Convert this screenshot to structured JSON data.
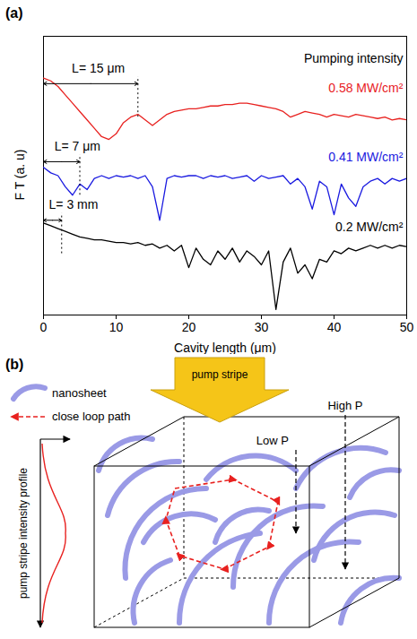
{
  "chart_panel": "(a)",
  "chart_data": {
    "type": "line",
    "xlabel": "Cavity length (μm)",
    "ylabel": "F T (a. u)",
    "xlim": [
      0,
      50
    ],
    "xticks": [
      0,
      10,
      20,
      30,
      40,
      50
    ],
    "ylim": [
      0,
      10
    ],
    "tick_labels": "x",
    "x": [
      0,
      1,
      2,
      3,
      4,
      5,
      6,
      7,
      8,
      9,
      10,
      11,
      12,
      13,
      14,
      15,
      16,
      17,
      18,
      19,
      20,
      21,
      22,
      23,
      24,
      25,
      26,
      27,
      28,
      29,
      30,
      31,
      32,
      33,
      34,
      35,
      36,
      37,
      38,
      39,
      40,
      41,
      42,
      43,
      44,
      45,
      46,
      47,
      48,
      49,
      50
    ],
    "series": [
      {
        "name": "0.58 MW/cm²",
        "color": "#e8211f",
        "values": [
          8.5,
          8.4,
          8.2,
          7.9,
          7.6,
          7.3,
          7.0,
          6.7,
          6.4,
          6.3,
          6.5,
          6.9,
          7.1,
          7.2,
          7.0,
          6.8,
          7.0,
          7.2,
          7.3,
          7.35,
          7.4,
          7.4,
          7.45,
          7.5,
          7.5,
          7.55,
          7.55,
          7.6,
          7.6,
          7.55,
          7.5,
          7.45,
          7.4,
          7.3,
          7.1,
          7.2,
          7.3,
          7.25,
          7.2,
          7.1,
          7.2,
          7.15,
          7.1,
          7.2,
          7.15,
          7.1,
          7.05,
          7.1,
          7.0,
          7.05,
          7.0
        ]
      },
      {
        "name": "0.41 MW/cm²",
        "color": "#1a1ae0",
        "values": [
          5.3,
          5.1,
          5.0,
          4.6,
          4.3,
          4.7,
          4.5,
          4.9,
          5.0,
          4.9,
          5.0,
          4.95,
          5.0,
          4.9,
          5.0,
          4.6,
          3.4,
          4.9,
          5.0,
          4.95,
          5.0,
          5.0,
          4.9,
          5.0,
          4.95,
          5.0,
          4.9,
          4.95,
          5.0,
          4.8,
          5.0,
          4.9,
          4.95,
          5.0,
          4.7,
          4.9,
          4.6,
          3.8,
          4.8,
          4.6,
          3.6,
          4.7,
          4.2,
          3.9,
          4.6,
          4.8,
          4.9,
          4.7,
          4.9,
          4.8,
          4.9
        ]
      },
      {
        "name": "0.2 MW/cm²",
        "color": "#000000",
        "values": [
          3.3,
          3.2,
          3.1,
          3.0,
          2.9,
          2.8,
          2.75,
          2.7,
          2.7,
          2.65,
          2.6,
          2.6,
          2.55,
          2.6,
          2.5,
          2.55,
          2.4,
          2.5,
          2.3,
          2.5,
          1.7,
          2.4,
          2.0,
          1.8,
          2.3,
          2.0,
          2.4,
          1.9,
          2.3,
          2.1,
          1.8,
          2.3,
          0.2,
          1.9,
          2.4,
          1.5,
          1.8,
          1.3,
          2.0,
          1.9,
          2.3,
          2.2,
          2.4,
          2.3,
          2.4,
          2.5,
          2.4,
          2.5,
          2.4,
          2.5,
          2.45
        ]
      }
    ],
    "annotations": [
      {
        "text": "Pumping intensity",
        "x": 49.5,
        "y": 9.2
      }
    ],
    "length_marks": [
      {
        "text": "L= 15 μm",
        "x": 13,
        "y": 8.3
      },
      {
        "text": "L= 7 μm",
        "x": 5,
        "y": 5.5
      },
      {
        "text": "L= 3 mm",
        "x": 2.5,
        "y": 3.4
      }
    ]
  },
  "diagram": {
    "panel": "(b)",
    "key": [
      {
        "label": "nanosheet"
      },
      {
        "label": "close loop path"
      }
    ],
    "pump": "pump stripe",
    "profile_label": "pump stripe intensity profile",
    "probes": [
      {
        "label": "Low P"
      },
      {
        "label": "High P"
      }
    ]
  }
}
